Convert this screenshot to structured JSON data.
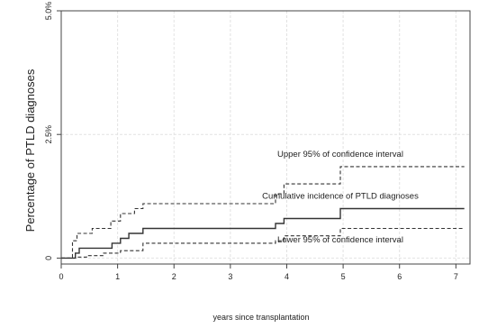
{
  "chart_data": {
    "type": "line",
    "title": "",
    "xlabel": "years since transplantation",
    "ylabel": "Percentage of PTLD diagnoses",
    "xlim": [
      0,
      7.25
    ],
    "ylim": [
      -0.12,
      5.0
    ],
    "grid": true,
    "x_ticks": [
      {
        "value": 0,
        "label": "0"
      },
      {
        "value": 1,
        "label": "1"
      },
      {
        "value": 2,
        "label": "2"
      },
      {
        "value": 3,
        "label": "3"
      },
      {
        "value": 4,
        "label": "4"
      },
      {
        "value": 5,
        "label": "5"
      },
      {
        "value": 6,
        "label": "6"
      },
      {
        "value": 7,
        "label": "7"
      }
    ],
    "y_ticks": [
      {
        "value": 0,
        "label": "0"
      },
      {
        "value": 2.5,
        "label": "2.5%"
      },
      {
        "value": 5.0,
        "label": "5.0%"
      }
    ],
    "series": [
      {
        "name": "Cumulative incidence of PTLD diagnoses",
        "style": "solid",
        "step": true,
        "x": [
          0,
          0.25,
          0.32,
          0.9,
          1.05,
          1.2,
          1.45,
          3.8,
          3.95,
          4.95,
          7.15
        ],
        "y": [
          0,
          0.1,
          0.2,
          0.3,
          0.4,
          0.5,
          0.6,
          0.7,
          0.8,
          1.0,
          1.0
        ]
      },
      {
        "name": "Upper 95% of confidence interval",
        "style": "dashed",
        "step": true,
        "x": [
          0,
          0.2,
          0.28,
          0.55,
          0.88,
          1.05,
          1.3,
          1.45,
          3.8,
          3.95,
          4.95,
          7.15
        ],
        "y": [
          0,
          0.35,
          0.5,
          0.6,
          0.75,
          0.9,
          1.0,
          1.1,
          1.3,
          1.5,
          1.85,
          1.85
        ]
      },
      {
        "name": "Lower 95% of confidence interval",
        "style": "dashed",
        "step": true,
        "x": [
          0,
          0.25,
          0.45,
          0.75,
          1.05,
          1.45,
          3.8,
          3.95,
          4.95,
          7.15
        ],
        "y": [
          0,
          0.02,
          0.05,
          0.1,
          0.15,
          0.3,
          0.35,
          0.45,
          0.6,
          0.6
        ]
      }
    ],
    "annotations": [
      {
        "series": 1,
        "text": "Upper 95% of confidence interval",
        "x": 4.95,
        "y": 2.05
      },
      {
        "series": 0,
        "text": "Cumulative incidence of PTLD diagnoses",
        "x": 4.95,
        "y": 1.2
      },
      {
        "series": 2,
        "text": "Lower 95% of confidence interval",
        "x": 4.95,
        "y": 0.32
      }
    ]
  }
}
